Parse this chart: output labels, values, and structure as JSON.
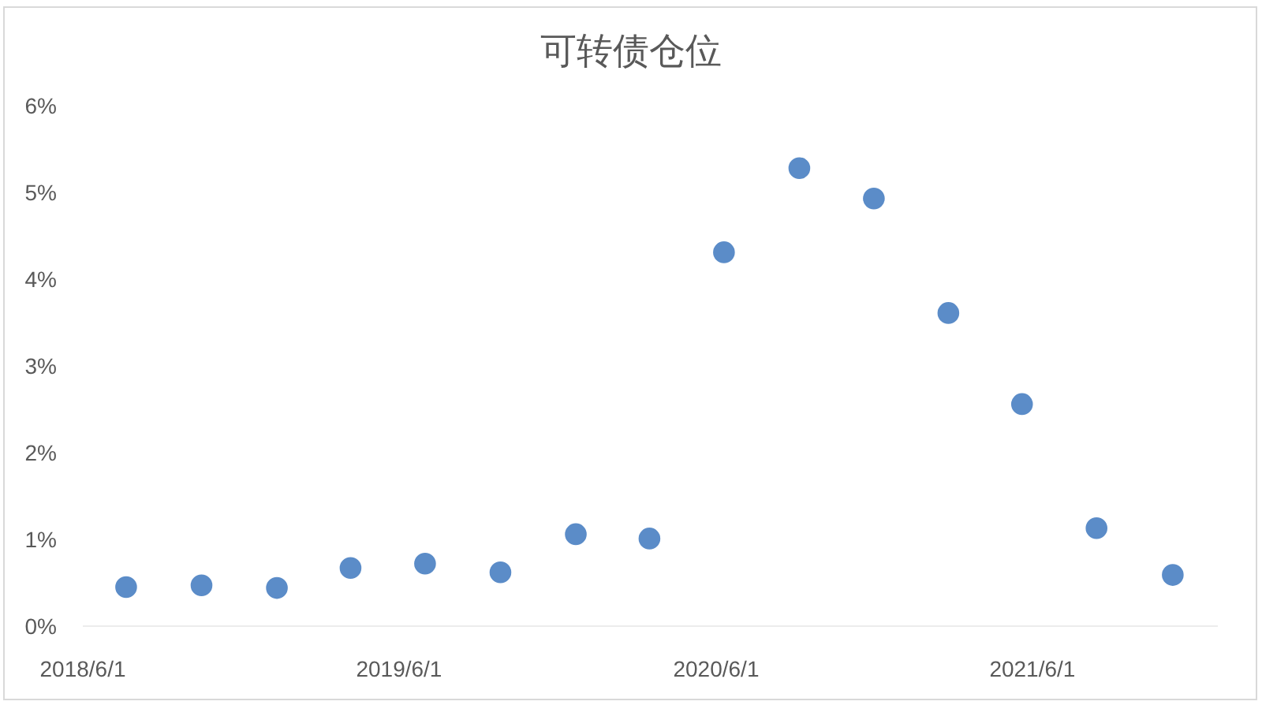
{
  "chart_data": {
    "type": "scatter",
    "title": "可转债仓位",
    "x": [
      "2018-07-21",
      "2018-10-16",
      "2019-01-11",
      "2019-04-06",
      "2019-07-01",
      "2019-09-26",
      "2019-12-22",
      "2020-03-16",
      "2020-06-10",
      "2020-09-05",
      "2020-11-30",
      "2021-02-24",
      "2021-05-20",
      "2021-08-14",
      "2021-11-10"
    ],
    "values": [
      0.45,
      0.47,
      0.44,
      0.67,
      0.72,
      0.62,
      1.06,
      1.01,
      4.31,
      5.28,
      4.93,
      3.61,
      2.56,
      1.13,
      0.59
    ],
    "color": "#5b8cc8",
    "marker": "circle",
    "xlim": [
      "2018-06-01",
      "2022-01-01"
    ],
    "xticks": [
      {
        "value": "2018-06-01",
        "label": "2018/6/1"
      },
      {
        "value": "2019-06-01",
        "label": "2019/6/1"
      },
      {
        "value": "2020-06-01",
        "label": "2020/6/1"
      },
      {
        "value": "2021-06-01",
        "label": "2021/6/1"
      }
    ],
    "ylim": [
      0,
      6
    ],
    "yticks": [
      {
        "value": 0,
        "label": "0%"
      },
      {
        "value": 1,
        "label": "1%"
      },
      {
        "value": 2,
        "label": "2%"
      },
      {
        "value": 3,
        "label": "3%"
      },
      {
        "value": 4,
        "label": "4%"
      },
      {
        "value": 5,
        "label": "5%"
      },
      {
        "value": 6,
        "label": "6%"
      }
    ]
  }
}
